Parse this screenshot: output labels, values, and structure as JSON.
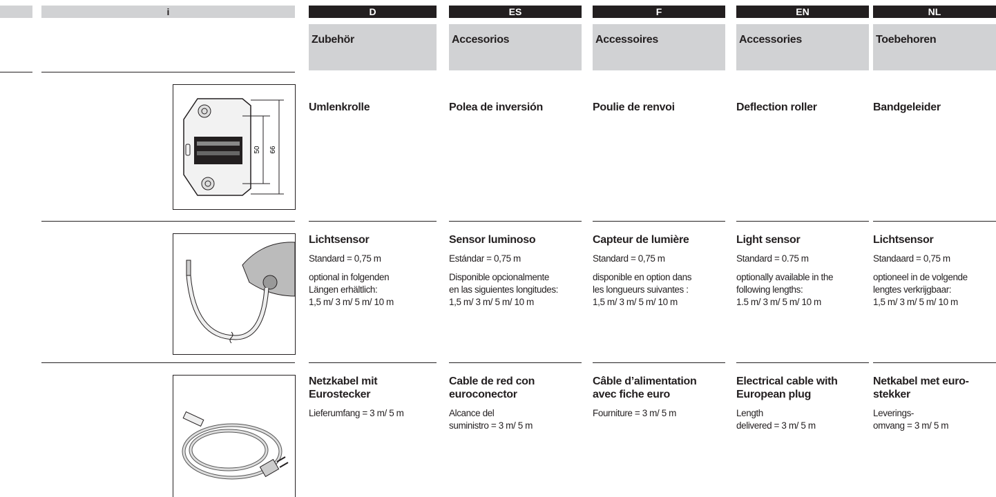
{
  "header": {
    "info": "i",
    "languages": [
      {
        "code": "D",
        "section": "Zubehör"
      },
      {
        "code": "ES",
        "section": "Accesorios"
      },
      {
        "code": "F",
        "section": "Accessoires"
      },
      {
        "code": "EN",
        "section": "Accessories"
      },
      {
        "code": "NL",
        "section": "Toebehoren"
      }
    ]
  },
  "rows": [
    {
      "figure": {
        "labels": [
          "50",
          "66"
        ]
      },
      "cells": [
        {
          "title": [
            "Umlenkrolle"
          ]
        },
        {
          "title": [
            "Polea de inversión"
          ]
        },
        {
          "title": [
            "Poulie de renvoi"
          ]
        },
        {
          "title": [
            "Deflection roller"
          ]
        },
        {
          "title": [
            "Bandgeleider"
          ]
        }
      ]
    },
    {
      "cells": [
        {
          "title": [
            "Lichtsensor"
          ],
          "paragraphs": [
            [
              "Standard = 0,75 m"
            ],
            [
              "optional in folgenden",
              "Längen erhältlich:",
              "1,5 m/ 3 m/ 5 m/ 10 m"
            ]
          ]
        },
        {
          "title": [
            "Sensor luminoso"
          ],
          "paragraphs": [
            [
              "Estándar = 0,75 m"
            ],
            [
              "Disponible opcionalmente",
              "en las siguientes longitudes:",
              "1,5 m/ 3 m/ 5 m/ 10 m"
            ]
          ]
        },
        {
          "title": [
            "Capteur de lumière"
          ],
          "paragraphs": [
            [
              "Standard = 0,75 m"
            ],
            [
              "disponible en option dans",
              "les longueurs suivantes :",
              "1,5 m/ 3 m/ 5 m/ 10 m"
            ]
          ]
        },
        {
          "title": [
            "Light sensor"
          ],
          "paragraphs": [
            [
              "Standard = 0.75 m"
            ],
            [
              "optionally available in the",
              "following lengths:",
              "1.5 m/ 3 m/ 5 m/ 10 m"
            ]
          ]
        },
        {
          "title": [
            "Lichtsensor"
          ],
          "paragraphs": [
            [
              "Standaard = 0,75 m"
            ],
            [
              "optioneel in de volgende",
              "lengtes verkrijgbaar:",
              "1,5 m/ 3 m/ 5 m/ 10 m"
            ]
          ]
        }
      ]
    },
    {
      "cells": [
        {
          "title": [
            "Netzkabel mit",
            "Eurostecker"
          ],
          "paragraphs": [
            [
              "Lieferumfang = 3 m/ 5 m"
            ]
          ]
        },
        {
          "title": [
            "Cable de red con",
            "euroconector"
          ],
          "paragraphs": [
            [
              "Alcance del",
              "suministro = 3 m/ 5 m"
            ]
          ]
        },
        {
          "title": [
            "Câble d’alimentation",
            "avec fiche euro"
          ],
          "paragraphs": [
            [
              "Fourniture = 3 m/ 5 m"
            ]
          ]
        },
        {
          "title": [
            "Electrical cable with",
            "European plug"
          ],
          "paragraphs": [
            [
              "Length",
              "delivered = 3 m/ 5 m"
            ]
          ]
        },
        {
          "title": [
            "Netkabel met euro-",
            "stekker"
          ],
          "paragraphs": [
            [
              "Leverings-",
              "omvang = 3 m/ 5 m"
            ]
          ]
        }
      ]
    }
  ]
}
